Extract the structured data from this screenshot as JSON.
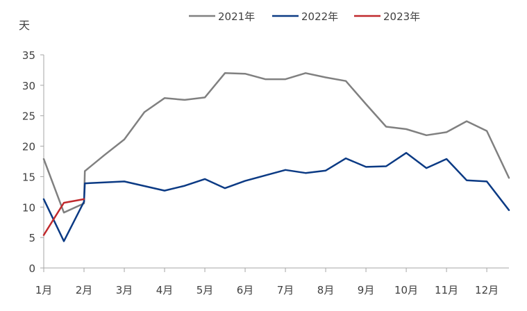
{
  "chart_data": {
    "type": "line",
    "title": "",
    "xlabel": "",
    "ylabel": "天",
    "ylim": [
      0,
      35
    ],
    "yticks": [
      0,
      5,
      10,
      15,
      20,
      25,
      30,
      35
    ],
    "x_tick_labels": [
      "1月",
      "2月",
      "3月",
      "4月",
      "5月",
      "6月",
      "7月",
      "8月",
      "9月",
      "10月",
      "11月",
      "12月"
    ],
    "x_tick_months": [
      1,
      2,
      3,
      4,
      5,
      6,
      7,
      8,
      9,
      10,
      11,
      12
    ],
    "xlim": [
      1,
      12.55
    ],
    "grid": false,
    "legend_position": "top",
    "series": [
      {
        "name": "2021年",
        "color": "#808080",
        "x": [
          1.0,
          1.5,
          2.0,
          2.02,
          2.5,
          3.0,
          3.5,
          4.0,
          4.5,
          5.0,
          5.5,
          6.0,
          6.5,
          7.0,
          7.5,
          8.0,
          8.5,
          9.0,
          9.5,
          10.0,
          10.5,
          11.0,
          11.5,
          12.0,
          12.55
        ],
        "y": [
          17.9,
          9.1,
          10.6,
          15.9,
          18.5,
          21.1,
          25.6,
          27.9,
          27.6,
          28.0,
          32.0,
          31.9,
          31.0,
          31.0,
          32.0,
          31.3,
          30.7,
          26.9,
          23.2,
          22.8,
          21.8,
          22.3,
          24.1,
          22.5,
          14.8
        ]
      },
      {
        "name": "2022年",
        "color": "#0b3a84",
        "x": [
          1.0,
          1.5,
          2.0,
          2.02,
          3.0,
          4.0,
          4.5,
          5.0,
          5.5,
          6.0,
          6.5,
          7.0,
          7.5,
          8.0,
          8.5,
          9.0,
          9.5,
          10.0,
          10.5,
          11.0,
          11.5,
          12.0,
          12.55
        ],
        "y": [
          11.3,
          4.4,
          10.9,
          13.9,
          14.2,
          12.7,
          13.5,
          14.6,
          13.1,
          14.3,
          15.2,
          16.1,
          15.6,
          16.0,
          18.0,
          16.6,
          16.7,
          18.9,
          16.4,
          17.9,
          14.4,
          14.2,
          9.5
        ]
      },
      {
        "name": "2023年",
        "color": "#c0292c",
        "x": [
          1.0,
          1.5,
          2.0
        ],
        "y": [
          5.4,
          10.7,
          11.3
        ]
      }
    ]
  }
}
